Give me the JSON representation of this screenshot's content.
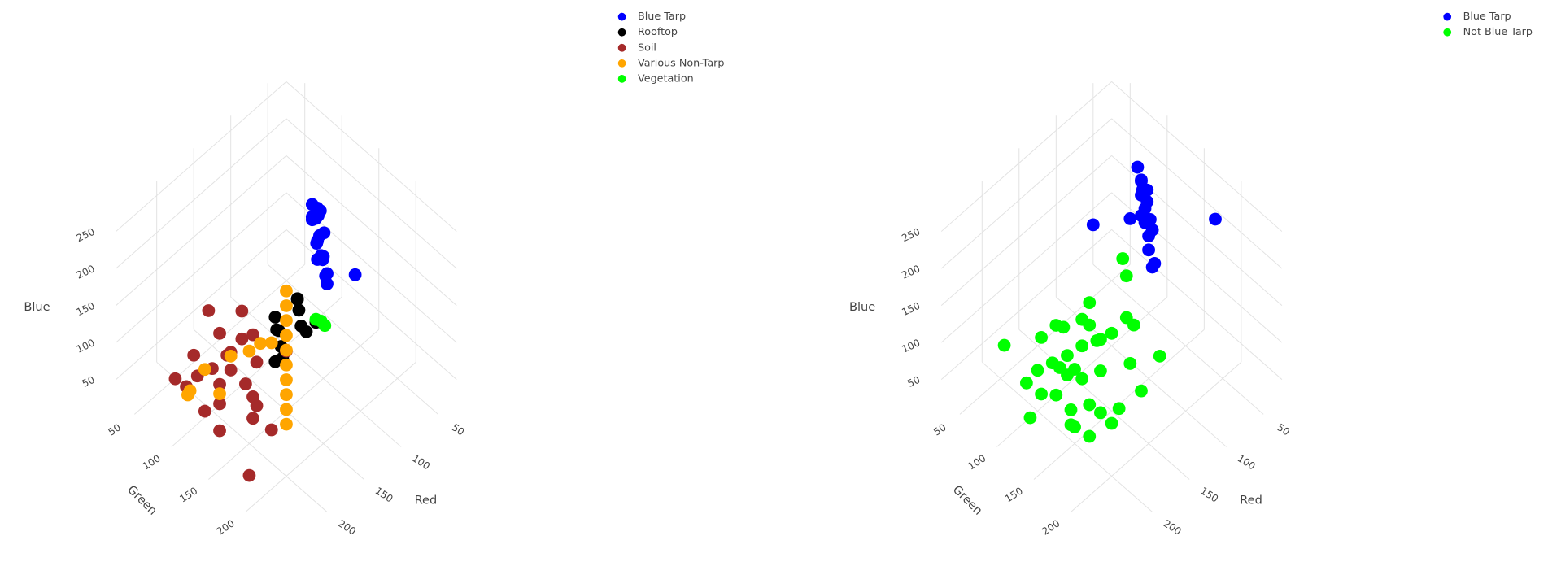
{
  "chart_data": [
    {
      "type": "scatter3d",
      "xtitle": "Red",
      "ytitle": "Green",
      "ztitle": "Blue",
      "xlim": [
        25,
        255
      ],
      "ylim": [
        25,
        255
      ],
      "zlim": [
        25,
        270
      ],
      "xticks": [
        50,
        100,
        150,
        200
      ],
      "yticks": [
        50,
        100,
        150,
        200
      ],
      "zticks": [
        50,
        100,
        150,
        200,
        250
      ],
      "grid": true,
      "legend": "top-right",
      "series": [
        {
          "name": "Blue Tarp",
          "color": "#0000ff",
          "x": [
            110,
            115,
            105,
            120,
            100,
            125,
            112,
            108,
            118,
            95,
            130,
            122,
            104,
            116,
            128,
            100,
            111,
            119,
            107,
            100
          ],
          "y": [
            150,
            160,
            140,
            170,
            135,
            180,
            155,
            145,
            165,
            130,
            185,
            175,
            150,
            158,
            170,
            142,
            162,
            168,
            148,
            193
          ],
          "z": [
            250,
            240,
            235,
            225,
            230,
            215,
            260,
            245,
            220,
            238,
            210,
            205,
            255,
            232,
            228,
            248,
            242,
            218,
            212,
            203
          ]
        },
        {
          "name": "Rooftop",
          "color": "#000000",
          "x": [
            150,
            155,
            145,
            160,
            170,
            165,
            175,
            180,
            158,
            150,
            185,
            168
          ],
          "y": [
            165,
            172,
            160,
            180,
            160,
            150,
            168,
            175,
            185,
            190,
            170,
            155
          ],
          "z": [
            190,
            185,
            180,
            175,
            160,
            165,
            150,
            145,
            170,
            180,
            140,
            155
          ]
        },
        {
          "name": "Soil",
          "color": "#a52a2a",
          "x": [
            200,
            210,
            190,
            220,
            230,
            185,
            205,
            215,
            195,
            225,
            240,
            180,
            200,
            210,
            235,
            190,
            220,
            205,
            215,
            195,
            230,
            185,
            200,
            250,
            175
          ],
          "y": [
            120,
            110,
            130,
            100,
            95,
            140,
            150,
            125,
            105,
            115,
            90,
            120,
            160,
            135,
            110,
            145,
            130,
            100,
            170,
            155,
            140,
            110,
            180,
            200,
            175
          ],
          "z": [
            118,
            100,
            140,
            90,
            80,
            150,
            110,
            70,
            130,
            60,
            95,
            160,
            85,
            120,
            140,
            75,
            105,
            165,
            90,
            135,
            60,
            100,
            70,
            70,
            150
          ]
        },
        {
          "name": "Various Non-Tarp",
          "color": "#ffa500",
          "x": [
            180,
            180,
            180,
            180,
            180,
            180,
            180,
            180,
            180,
            180,
            220,
            225,
            210,
            200,
            190,
            230,
            205,
            215
          ],
          "y": [
            180,
            180,
            180,
            180,
            180,
            180,
            180,
            180,
            180,
            180,
            87,
            95,
            100,
            150,
            170,
            140,
            130,
            180
          ],
          "z": [
            60,
            80,
            100,
            120,
            140,
            160,
            180,
            200,
            220,
            240,
            53,
            70,
            90,
            150,
            170,
            110,
            130,
            200
          ]
        },
        {
          "name": "Vegetation",
          "color": "#00ff00",
          "x": [
            120,
            118,
            125
          ],
          "y": [
            167,
            170,
            165
          ],
          "z": [
            135,
            130,
            140
          ]
        }
      ]
    },
    {
      "type": "scatter3d",
      "xtitle": "Red",
      "ytitle": "Green",
      "ztitle": "Blue",
      "xlim": [
        25,
        255
      ],
      "ylim": [
        25,
        255
      ],
      "zlim": [
        25,
        270
      ],
      "xticks": [
        50,
        100,
        150,
        200
      ],
      "yticks": [
        50,
        100,
        150,
        200
      ],
      "zticks": [
        50,
        100,
        150,
        200,
        250
      ],
      "grid": true,
      "legend": "top-right",
      "series": [
        {
          "name": "Blue Tarp",
          "color": "#0000ff",
          "x": [
            90,
            80,
            95,
            100,
            85,
            105,
            110,
            92,
            88,
            98,
            115,
            100,
            60,
            95,
            90,
            120,
            105,
            90,
            85,
            110
          ],
          "y": [
            130,
            115,
            135,
            145,
            125,
            150,
            160,
            140,
            130,
            150,
            165,
            155,
            200,
            120,
            65,
            175,
            145,
            138,
            128,
            168
          ],
          "z": [
            265,
            262,
            255,
            250,
            258,
            240,
            235,
            248,
            252,
            238,
            225,
            230,
            249,
            210,
            149,
            215,
            245,
            260,
            240,
            205
          ]
        },
        {
          "name": "Not Blue Tarp",
          "color": "#00ff00",
          "x": [
            170,
            180,
            160,
            190,
            200,
            150,
            175,
            185,
            165,
            210,
            220,
            140,
            155,
            195,
            205,
            170,
            180,
            160,
            230,
            215,
            145,
            190,
            175,
            165,
            200,
            185,
            150,
            210,
            170,
            160,
            135,
            225,
            180,
            195,
            210,
            130,
            125,
            230
          ],
          "y": [
            130,
            120,
            140,
            110,
            100,
            150,
            160,
            145,
            125,
            115,
            105,
            170,
            180,
            135,
            150,
            95,
            190,
            200,
            120,
            140,
            165,
            175,
            110,
            150,
            130,
            185,
            120,
            160,
            140,
            110,
            200,
            170,
            150,
            100,
            180,
            150,
            140,
            85
          ],
          "z": [
            113,
            100,
            120,
            90,
            80,
            130,
            110,
            95,
            140,
            70,
            85,
            150,
            120,
            100,
            75,
            110,
            90,
            105,
            60,
            95,
            160,
            80,
            125,
            135,
            110,
            70,
            145,
            65,
            150,
            55,
            130,
            90,
            60,
            120,
            70,
            190,
            200,
            127
          ]
        }
      ]
    }
  ]
}
